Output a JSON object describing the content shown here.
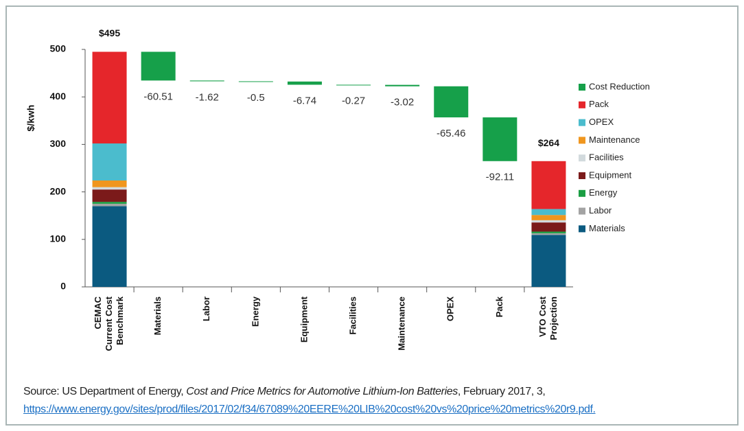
{
  "chart_data": {
    "type": "waterfall",
    "ylabel": "$/kwh",
    "categories": [
      [
        "CEMAC",
        "Current Cost",
        "Benchmark"
      ],
      [
        "Materials"
      ],
      [
        "Labor"
      ],
      [
        "Energy"
      ],
      [
        "Equipment"
      ],
      [
        "Facilities"
      ],
      [
        "Maintenance"
      ],
      [
        "OPEX"
      ],
      [
        "Pack"
      ],
      [
        "VTO Cost",
        "Projection"
      ]
    ],
    "series": [
      {
        "name": "Materials",
        "color": "#0b5a80",
        "values": [
          170,
          null,
          null,
          null,
          null,
          null,
          null,
          null,
          null,
          109.49
        ]
      },
      {
        "name": "Labor",
        "color": "#a3a3a3",
        "values": [
          5,
          null,
          null,
          null,
          null,
          null,
          null,
          null,
          null,
          3.38
        ]
      },
      {
        "name": "Energy",
        "color": "#1a9e43",
        "values": [
          4,
          null,
          null,
          null,
          null,
          null,
          null,
          null,
          null,
          3.5
        ]
      },
      {
        "name": "Equipment",
        "color": "#7b1a1a",
        "values": [
          26,
          null,
          null,
          null,
          null,
          null,
          null,
          null,
          null,
          19.26
        ]
      },
      {
        "name": "Facilities",
        "color": "#d2dadd",
        "values": [
          5,
          null,
          null,
          null,
          null,
          null,
          null,
          null,
          null,
          4.73
        ]
      },
      {
        "name": "Maintenance",
        "color": "#f0961e",
        "values": [
          14,
          null,
          null,
          null,
          null,
          null,
          null,
          null,
          null,
          10.98
        ]
      },
      {
        "name": "OPEX",
        "color": "#4bbccd",
        "values": [
          78,
          null,
          null,
          null,
          null,
          null,
          null,
          null,
          null,
          12.54
        ]
      },
      {
        "name": "Pack",
        "color": "#e5262b",
        "values": [
          193,
          null,
          null,
          null,
          null,
          null,
          null,
          null,
          null,
          100.89
        ]
      },
      {
        "name": "Cost Reduction",
        "color": "#16a04a",
        "values": [
          null,
          -60.51,
          -1.62,
          -0.5,
          -6.74,
          -0.27,
          -3.02,
          -65.46,
          -92.11,
          null
        ]
      }
    ],
    "totals": [
      {
        "value": 495,
        "label": "$495"
      },
      {
        "value": 264,
        "label": "$264"
      }
    ],
    "ylim": [
      0,
      500
    ],
    "yticks": [
      0,
      100,
      200,
      300,
      400,
      500
    ]
  },
  "source": {
    "prefix": "Source: US Department of Energy, ",
    "title": "Cost and Price Metrics for Automotive Lithium-Ion Batteries",
    "suffix": ", February 2017, 3,",
    "url": "https://www.energy.gov/sites/prod/files/2017/02/f34/67089%20EERE%20LIB%20cost%20vs%20price%20metrics%20r9.pdf."
  }
}
